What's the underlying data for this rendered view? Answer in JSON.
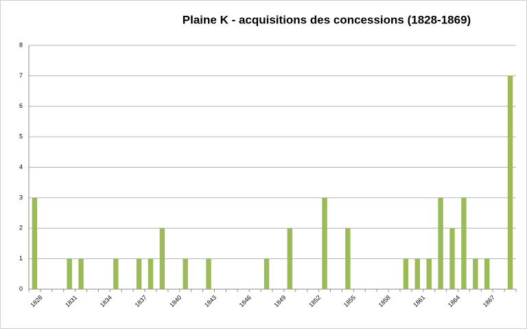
{
  "chart_data": {
    "type": "bar",
    "title": "Plaine K - acquisitions des concessions (1828-1869)",
    "categories": [
      "1828",
      null,
      null,
      "1831",
      null,
      null,
      "1834",
      null,
      null,
      "1837",
      null,
      null,
      "1840",
      null,
      null,
      "1843",
      null,
      null,
      "1846",
      null,
      null,
      "1849",
      null,
      null,
      "1852",
      null,
      null,
      "1855",
      null,
      null,
      "1858",
      null,
      null,
      "1861",
      null,
      null,
      "1864",
      null,
      null,
      "1867",
      null,
      null
    ],
    "values": [
      3,
      0,
      0,
      1,
      1,
      0,
      0,
      1,
      0,
      1,
      1,
      2,
      0,
      1,
      0,
      1,
      0,
      0,
      0,
      0,
      1,
      0,
      2,
      0,
      0,
      3,
      0,
      2,
      0,
      0,
      0,
      0,
      1,
      1,
      1,
      3,
      2,
      3,
      1,
      1,
      0,
      7
    ],
    "color": "#9bbb59",
    "ylim": [
      0,
      8
    ],
    "yticks": [
      0,
      1,
      2,
      3,
      4,
      5,
      6,
      7,
      8
    ],
    "grid": true
  }
}
